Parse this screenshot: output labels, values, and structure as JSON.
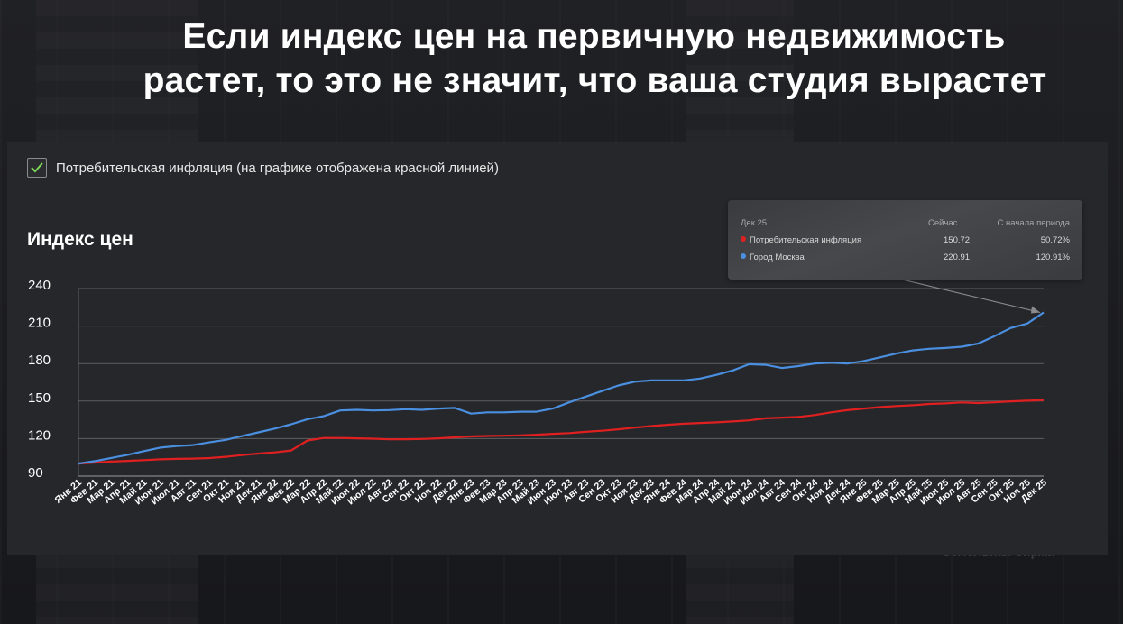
{
  "headline": {
    "line1": "Если индекс цен на первичную недвижимость",
    "line2": "растет, то это не значит, что ваша студия вырастет"
  },
  "legend": {
    "checkbox_checked": true,
    "label": "Потребительская инфляция (на графике отображена красной линией)"
  },
  "tooltip": {
    "period": "Дек 25",
    "col_now": "Сейчас",
    "col_since": "С начала периода",
    "rows": [
      {
        "name": "Потребительская инфляция",
        "now": "150.72",
        "since": "50.72%",
        "color": "#e02020"
      },
      {
        "name": "Город Москва",
        "now": "220.91",
        "since": "120.91%",
        "color": "#4a8fe0"
      }
    ]
  },
  "footer": {
    "text": "Земельная биржа"
  },
  "chart_data": {
    "type": "line",
    "title": "Индекс цен",
    "ylim": [
      90,
      240
    ],
    "yticks": [
      90,
      120,
      150,
      180,
      210,
      240
    ],
    "grid": true,
    "categories": [
      "Янв 21",
      "Фев 21",
      "Мар 21",
      "Апр 21",
      "Май 21",
      "Июн 21",
      "Июл 21",
      "Авг 21",
      "Сен 21",
      "Окт 21",
      "Ноя 21",
      "Дек 21",
      "Янв 22",
      "Фев 22",
      "Мар 22",
      "Апр 22",
      "Май 22",
      "Июн 22",
      "Июл 22",
      "Авг 22",
      "Сен 22",
      "Окт 22",
      "Ноя 22",
      "Дек 22",
      "Янв 23",
      "Фев 23",
      "Мар 23",
      "Апр 23",
      "Май 23",
      "Июн 23",
      "Июл 23",
      "Авг 23",
      "Сен 23",
      "Окт 23",
      "Ноя 23",
      "Дек 23",
      "Янв 24",
      "Фев 24",
      "Мар 24",
      "Апр 24",
      "Май 24",
      "Июн 24",
      "Июл 24",
      "Авг 24",
      "Сен 24",
      "Окт 24",
      "Ноя 24",
      "Дек 24",
      "Янв 25",
      "Фев 25",
      "Мар 25",
      "Апр 25",
      "Май 25",
      "Июн 25",
      "Июл 25",
      "Авг 25",
      "Сен 25",
      "Окт 25",
      "Ноя 25",
      "Дек 25"
    ],
    "series": [
      {
        "name": "Потребительская инфляция",
        "color": "#e02020",
        "values": [
          100.0,
          100.8,
          101.6,
          102.2,
          102.8,
          103.4,
          103.8,
          104.0,
          104.4,
          105.4,
          106.8,
          108.0,
          109.0,
          110.5,
          118.5,
          120.5,
          120.5,
          120.2,
          119.9,
          119.4,
          119.5,
          119.7,
          120.2,
          121.0,
          121.7,
          122.1,
          122.3,
          122.6,
          123.1,
          123.8,
          124.4,
          125.4,
          126.3,
          127.4,
          128.8,
          130.0,
          131.0,
          131.9,
          132.5,
          133.0,
          133.7,
          134.6,
          136.2,
          136.8,
          137.3,
          138.8,
          141.0,
          142.7,
          144.0,
          145.2,
          146.0,
          146.7,
          147.7,
          148.1,
          148.9,
          148.4,
          149.0,
          149.8,
          150.3,
          150.72
        ]
      },
      {
        "name": "Город Москва",
        "color": "#4a8fe0",
        "values": [
          100.0,
          102.0,
          104.5,
          107.0,
          110.0,
          112.8,
          114.0,
          114.8,
          117.0,
          119.0,
          122.0,
          125.0,
          128.0,
          131.5,
          135.5,
          138.0,
          142.5,
          143.0,
          142.5,
          142.8,
          143.5,
          143.0,
          144.0,
          144.5,
          140.0,
          141.0,
          141.0,
          141.5,
          141.5,
          144.0,
          149.0,
          153.5,
          158.0,
          162.5,
          165.5,
          166.5,
          166.5,
          166.5,
          168.0,
          171.0,
          174.5,
          179.5,
          179.0,
          176.5,
          178.0,
          180.0,
          180.8,
          180.0,
          182.0,
          185.0,
          188.0,
          190.5,
          191.8,
          192.5,
          193.5,
          196.0,
          202.0,
          208.5,
          212.0,
          220.91
        ]
      }
    ]
  }
}
